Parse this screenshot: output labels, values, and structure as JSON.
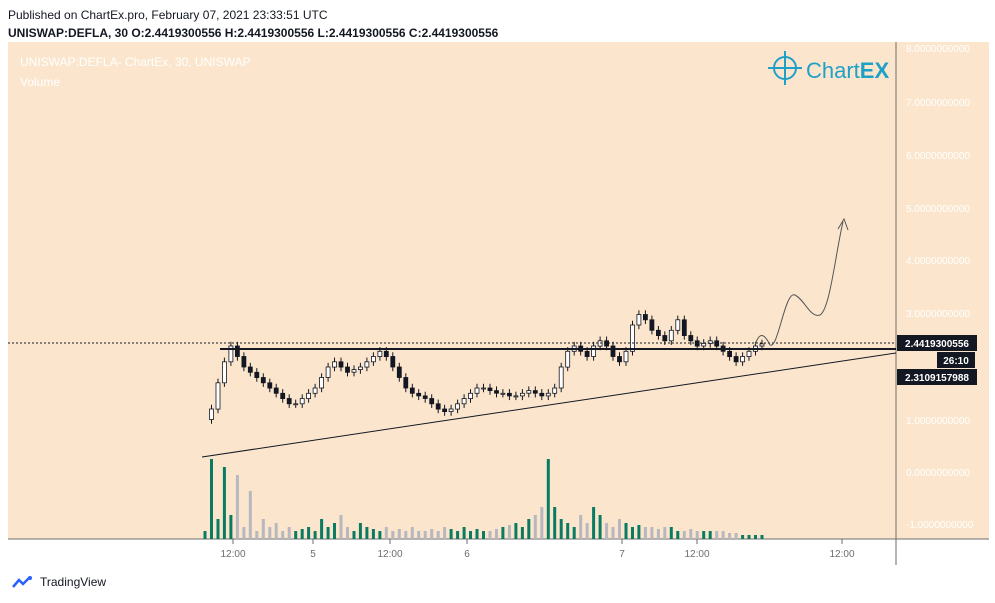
{
  "header": {
    "published": "Published on ChartEx.pro, February 07, 2021 23:33:51 UTC",
    "ohlc": "UNISWAP:DEFLA, 30  O:2.4419300556  H:2.4419300556  L:2.4419300556  C:2.4419300556"
  },
  "footer": {
    "brand": "TradingView"
  },
  "watermark": {
    "logo_text_a": "Chart",
    "logo_text_b": "EX"
  },
  "chart_data": {
    "type": "candlestick",
    "symbol_label": "UNISWAP:DEFLA- ChartEx, 30, UNISWAP",
    "volume_label": "Volume",
    "y_ticks": [
      "8.0000000000",
      "7.0000000000",
      "6.0000000000",
      "5.0000000000",
      "4.0000000000",
      "3.0000000000",
      "1.0000000000",
      "0.0000000000",
      "-1.0000000000"
    ],
    "x_ticks": [
      "12:00",
      "5",
      "12:00",
      "6",
      "7",
      "12:00",
      "12:00"
    ],
    "price_badges": [
      {
        "label": "2.4419300556",
        "kind": "last"
      },
      {
        "label": "26:10",
        "kind": "countdown"
      },
      {
        "label": "2.3109157988",
        "kind": "line"
      }
    ],
    "price_path": [
      1.0,
      1.2,
      1.7,
      2.1,
      2.4,
      2.2,
      2.0,
      1.9,
      1.8,
      1.7,
      1.6,
      1.5,
      1.4,
      1.3,
      1.3,
      1.4,
      1.5,
      1.6,
      1.8,
      2.0,
      2.1,
      2.0,
      1.9,
      1.95,
      2.0,
      2.1,
      2.2,
      2.3,
      2.2,
      2.0,
      1.8,
      1.6,
      1.5,
      1.45,
      1.4,
      1.3,
      1.2,
      1.15,
      1.2,
      1.3,
      1.4,
      1.5,
      1.6,
      1.6,
      1.55,
      1.5,
      1.5,
      1.45,
      1.45,
      1.5,
      1.55,
      1.5,
      1.45,
      1.5,
      1.6,
      2.0,
      2.3,
      2.4,
      2.3,
      2.2,
      2.4,
      2.5,
      2.4,
      2.2,
      2.1,
      2.3,
      2.8,
      3.0,
      2.9,
      2.7,
      2.6,
      2.5,
      2.7,
      2.9,
      2.6,
      2.5,
      2.4,
      2.45,
      2.5,
      2.4,
      2.3,
      2.2,
      2.1,
      2.2,
      2.3,
      2.4,
      2.44
    ],
    "volume_path": [
      0.2,
      2.0,
      0.5,
      1.8,
      0.6,
      1.6,
      0.3,
      1.2,
      0.2,
      0.5,
      0.3,
      0.4,
      0.2,
      0.3,
      0.2,
      0.25,
      0.3,
      0.2,
      0.5,
      0.3,
      0.4,
      0.6,
      0.3,
      0.2,
      0.4,
      0.3,
      0.25,
      0.2,
      0.3,
      0.2,
      0.25,
      0.2,
      0.3,
      0.2,
      0.2,
      0.25,
      0.2,
      0.3,
      0.25,
      0.2,
      0.3,
      0.2,
      0.25,
      0.2,
      0.2,
      0.25,
      0.3,
      0.35,
      0.4,
      0.3,
      0.5,
      0.6,
      0.8,
      2.0,
      0.8,
      0.5,
      0.4,
      0.3,
      0.6,
      0.4,
      0.8,
      0.6,
      0.4,
      0.3,
      0.5,
      0.4,
      0.3,
      0.35,
      0.3,
      0.3,
      0.25,
      0.3,
      0.3,
      0.2,
      0.2,
      0.25,
      0.2,
      0.2,
      0.2,
      0.2,
      0.2,
      0.15,
      0.15,
      0.1,
      0.1,
      0.1,
      0.1
    ],
    "colors": {
      "bg": "#fbe6cd",
      "up": "#ffffff",
      "down": "#131722",
      "vol_up": "#0b7a62",
      "vol_down": "#b7b7bf",
      "accent": "#1ea0c8"
    }
  }
}
